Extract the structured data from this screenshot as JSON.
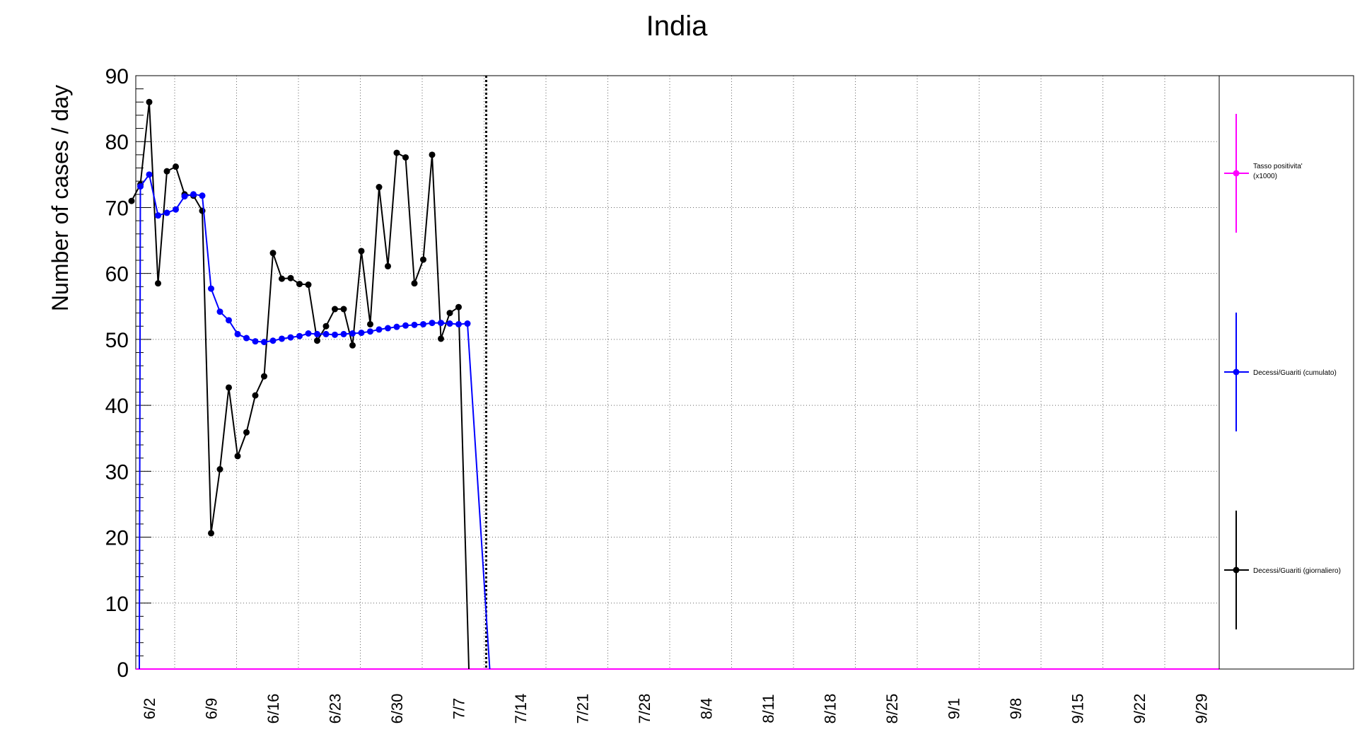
{
  "chart_data": {
    "type": "line",
    "title": "India",
    "ylabel": "Number of cases / day",
    "xlabel": "",
    "ylim": [
      0,
      90
    ],
    "yticks": [
      0,
      10,
      20,
      30,
      40,
      50,
      60,
      70,
      80,
      90
    ],
    "grid": true,
    "legend_position": "right",
    "x_dates": [
      "6/2",
      "6/9",
      "6/16",
      "6/23",
      "6/30",
      "7/7",
      "7/14",
      "7/21",
      "7/28",
      "8/4",
      "8/11",
      "8/18",
      "8/25",
      "9/1",
      "9/8",
      "9/15",
      "9/22",
      "9/29"
    ],
    "marker_date": "7/9",
    "colors": {
      "daily": "#000000",
      "cumulative": "#0000ff",
      "positivity": "#ff00ff"
    },
    "series": [
      {
        "name": "Decessi/Guariti (giornaliero)",
        "key": "daily",
        "x": [
          "5/31",
          "6/1",
          "6/2",
          "6/3",
          "6/4",
          "6/5",
          "6/6",
          "6/7",
          "6/8",
          "6/9",
          "6/10",
          "6/11",
          "6/12",
          "6/13",
          "6/14",
          "6/15",
          "6/16",
          "6/17",
          "6/18",
          "6/19",
          "6/20",
          "6/21",
          "6/22",
          "6/23",
          "6/24",
          "6/25",
          "6/26",
          "6/27",
          "6/28",
          "6/29",
          "6/30",
          "7/1",
          "7/2",
          "7/3",
          "7/4",
          "7/5",
          "7/6",
          "7/7",
          "7/8"
        ],
        "values": [
          71,
          73.5,
          86,
          58.5,
          75.5,
          76.2,
          72,
          71.8,
          69.5,
          20.6,
          30.3,
          42.7,
          32.3,
          35.9,
          41.5,
          44.4,
          63.1,
          59.2,
          59.3,
          58.4,
          58.3,
          49.8,
          52,
          54.6,
          54.6,
          49.1,
          63.4,
          52.3,
          73.1,
          61.1,
          78.3,
          77.6,
          58.5,
          62.1,
          78,
          50.1,
          54,
          54.9,
          0
        ]
      },
      {
        "name": "Decessi/Guariti (cumulato)",
        "key": "cumulative",
        "x": [
          "5/31",
          "6/1",
          "6/2",
          "6/3",
          "6/4",
          "6/5",
          "6/6",
          "6/7",
          "6/8",
          "6/9",
          "6/10",
          "6/11",
          "6/12",
          "6/13",
          "6/14",
          "6/15",
          "6/16",
          "6/17",
          "6/18",
          "6/19",
          "6/20",
          "6/21",
          "6/22",
          "6/23",
          "6/24",
          "6/25",
          "6/26",
          "6/27",
          "6/28",
          "6/29",
          "6/30",
          "7/1",
          "7/2",
          "7/3",
          "7/4",
          "7/5",
          "7/6",
          "7/7",
          "7/8",
          "7/9"
        ],
        "values": [
          0,
          73.2,
          75,
          68.8,
          69.2,
          69.7,
          71.7,
          72,
          71.8,
          57.7,
          54.2,
          52.9,
          50.8,
          50.2,
          49.7,
          49.6,
          49.8,
          50.1,
          50.3,
          50.5,
          50.9,
          50.8,
          50.8,
          50.7,
          50.8,
          50.9,
          51,
          51.2,
          51.5,
          51.7,
          51.9,
          52.1,
          52.2,
          52.3,
          52.5,
          52.5,
          52.4,
          52.3,
          52.4,
          0
        ]
      },
      {
        "name": "Tasso positivita' (x1000)",
        "key": "positivity",
        "x": [
          "5/31",
          "10/3"
        ],
        "values": [
          0,
          0
        ]
      }
    ]
  }
}
